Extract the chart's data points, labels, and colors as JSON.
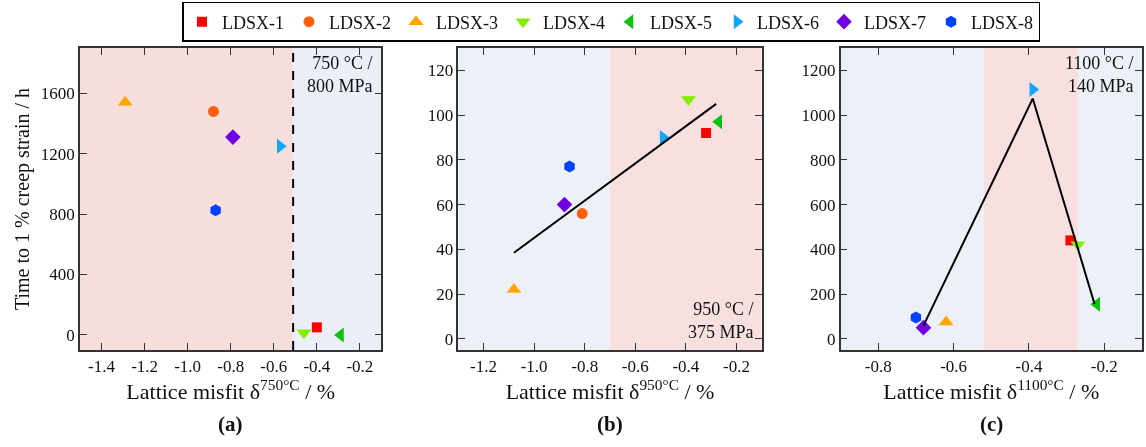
{
  "chart_data": [
    {
      "type": "scatter",
      "title": "(a)",
      "xlabel": "Lattice misfit δ$^{750°C}$ / %",
      "ylabel": "Time to 1 % creep strain / h",
      "xlim": [
        -1.5,
        -0.1
      ],
      "xticks": [
        -1.4,
        -1.2,
        {
          "value": -1,
          "label": "-1.0"
        },
        -0.8,
        -0.6,
        -0.4,
        -0.2
      ],
      "ylim": [
        -100,
        1900
      ],
      "yticks": [
        0,
        400,
        800,
        1200,
        1600
      ],
      "legend": "top",
      "annotations": [
        "750 °C /\n800 MPa"
      ],
      "ref_lines": [
        {
          "axis": "x",
          "value": -0.51,
          "color": "#000000",
          "line_style": "dashed"
        }
      ],
      "bands": [
        {
          "axis": "x",
          "from": -1.5,
          "to": -0.51,
          "color": "#f9dede"
        },
        {
          "axis": "x",
          "from": -0.51,
          "to": -0.1,
          "color": "#eceff7"
        }
      ],
      "series": [
        {
          "name": "LDSX-1",
          "color": "#ff0000",
          "marker": "square",
          "x": [
            -0.4
          ],
          "values": [
            50
          ]
        },
        {
          "name": "LDSX-2",
          "color": "#ff6010",
          "marker": "circle",
          "x": [
            -0.88
          ],
          "values": [
            1480
          ]
        },
        {
          "name": "LDSX-3",
          "color": "#ffa500",
          "marker": "triangle",
          "x": [
            -1.29
          ],
          "values": [
            1540
          ]
        },
        {
          "name": "LDSX-4",
          "color": "#80f000",
          "marker": "triangle-down",
          "x": [
            -0.46
          ],
          "values": [
            15
          ]
        },
        {
          "name": "LDSX-5",
          "color": "#10c010",
          "marker": "triangle-left",
          "x": [
            -0.29
          ],
          "values": [
            0
          ]
        },
        {
          "name": "LDSX-6",
          "color": "#10a8ff",
          "marker": "triangle-right",
          "x": [
            -0.57
          ],
          "values": [
            1250
          ]
        },
        {
          "name": "LDSX-7",
          "color": "#7000e0",
          "marker": "diamond",
          "x": [
            -0.79
          ],
          "values": [
            1310
          ]
        },
        {
          "name": "LDSX-8",
          "color": "#0040ff",
          "x": [
            -0.87
          ],
          "values": [
            825
          ]
        }
      ]
    },
    {
      "type": "scatter",
      "title": "(b)",
      "xlabel": "Lattice misfit δ$^{950°C}$ / %",
      "xlim": [
        -1.3,
        -0.1
      ],
      "xticks": [
        -1.2,
        {
          "value": -1,
          "label": "-1.0"
        },
        -0.8,
        -0.6,
        -0.4,
        -0.2
      ],
      "ylim": [
        -5,
        130
      ],
      "yticks": [
        0,
        20,
        40,
        60,
        80,
        100,
        120
      ],
      "annotations": [
        "950 °C /\n375 MPa"
      ],
      "bands": [
        {
          "axis": "x",
          "from": -1.3,
          "to": -0.7,
          "color": "#eef0f8"
        },
        {
          "axis": "x",
          "from": -0.7,
          "to": -0.1,
          "color": "#f9e0e0"
        }
      ],
      "series": [
        {
          "color": "#ff0000",
          "marker": "square",
          "x": [
            -0.32
          ],
          "values": [
            92
          ]
        },
        {
          "color": "#ff6010",
          "marker": "circle",
          "x": [
            -0.81
          ],
          "values": [
            56
          ]
        },
        {
          "color": "#ffa500",
          "marker": "triangle",
          "x": [
            -1.08
          ],
          "values": [
            22
          ]
        },
        {
          "color": "#80f000",
          "marker": "triangle-down",
          "x": [
            -0.39
          ],
          "values": [
            107
          ]
        },
        {
          "color": "#10c010",
          "marker": "triangle-left",
          "x": [
            -0.27
          ],
          "values": [
            97
          ]
        },
        {
          "color": "#10a8ff",
          "marker": "triangle-right",
          "x": [
            -0.49
          ],
          "values": [
            90
          ]
        },
        {
          "color": "#7000e0",
          "marker": "diamond",
          "x": [
            -0.88
          ],
          "values": [
            60
          ]
        },
        {
          "color": "#0040ff",
          "x": [
            -0.86
          ],
          "values": [
            77
          ]
        },
        {
          "type": "line",
          "color": "#000000",
          "x": [
            -1.08,
            -0.28
          ],
          "values": [
            38.5,
            105
          ]
        }
      ]
    },
    {
      "type": "scatter",
      "title": "(c)",
      "xlabel": "Lattice misfit δ$^{1100°C}$ / %",
      "xlim": [
        -0.9,
        -0.1
      ],
      "xticks": [
        -0.8,
        -0.6,
        -0.4,
        -0.2
      ],
      "ylim": [
        -50,
        1300
      ],
      "yticks": [
        0,
        200,
        400,
        600,
        800,
        1000,
        1200
      ],
      "annotations": [
        "1100 °C /\n140 MPa"
      ],
      "bands": [
        {
          "axis": "x",
          "from": -0.9,
          "to": -0.52,
          "color": "#eef0f8"
        },
        {
          "axis": "x",
          "from": -0.52,
          "to": -0.27,
          "color": "#f9e0e0"
        },
        {
          "axis": "x",
          "from": -0.27,
          "to": -0.1,
          "color": "#eef0f8"
        }
      ],
      "series": [
        {
          "color": "#ff0000",
          "marker": "square",
          "x": [
            -0.29
          ],
          "values": [
            440
          ]
        },
        {
          "color": "#ffa500",
          "marker": "triangle",
          "x": [
            -0.62
          ],
          "values": [
            75
          ]
        },
        {
          "color": "#80f000",
          "marker": "triangle-down",
          "x": [
            -0.27
          ],
          "values": [
            420
          ]
        },
        {
          "color": "#10c010",
          "marker": "triangle-left",
          "x": [
            -0.22
          ],
          "values": [
            155
          ]
        },
        {
          "color": "#10a8ff",
          "marker": "triangle-right",
          "x": [
            -0.39
          ],
          "values": [
            1115
          ]
        },
        {
          "color": "#7000e0",
          "marker": "diamond",
          "x": [
            -0.68
          ],
          "values": [
            50
          ]
        },
        {
          "color": "#0040ff",
          "x": [
            -0.7
          ],
          "values": [
            95
          ]
        },
        {
          "type": "line",
          "color": "#000000",
          "x": [
            -0.68,
            -0.39,
            -0.226
          ],
          "values": [
            59,
            1074,
            156
          ]
        }
      ]
    }
  ]
}
